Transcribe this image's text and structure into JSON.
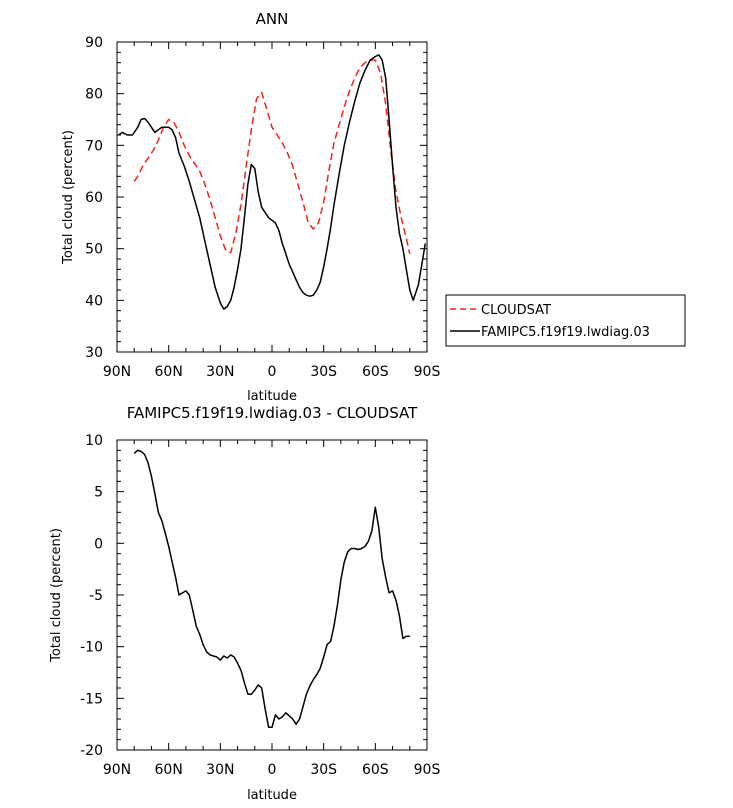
{
  "chart_data": [
    {
      "type": "line",
      "title": "ANN",
      "xlabel": "latitude",
      "ylabel": "Total cloud (percent)",
      "xlim": [
        90,
        -90
      ],
      "ylim": [
        30,
        90
      ],
      "x_ticks": [
        90,
        60,
        30,
        0,
        -30,
        -60,
        -90
      ],
      "x_tick_labels": [
        "90N",
        "60N",
        "30N",
        "0",
        "30S",
        "60S",
        "90S"
      ],
      "y_ticks": [
        30,
        40,
        50,
        60,
        70,
        80,
        90
      ],
      "y_tick_labels": [
        "30",
        "40",
        "50",
        "60",
        "70",
        "80",
        "90"
      ],
      "legend": {
        "position": "right"
      },
      "series": [
        {
          "name": "CLOUDSAT",
          "color": "#e8281e",
          "dash": "dashed",
          "x": [
            80,
            78,
            75,
            72,
            69,
            66,
            63,
            60,
            57,
            54,
            51,
            48,
            45,
            42,
            39,
            36,
            33,
            30,
            27,
            24,
            21,
            18,
            15,
            12,
            9,
            6,
            3,
            0,
            -3,
            -6,
            -9,
            -12,
            -15,
            -18,
            -21,
            -24,
            -27,
            -30,
            -33,
            -36,
            -39,
            -42,
            -45,
            -48,
            -51,
            -54,
            -57,
            -60,
            -63,
            -66,
            -69,
            -72,
            -75,
            -78,
            -80
          ],
          "y": [
            63,
            64,
            66,
            67.5,
            69,
            71,
            73.5,
            75,
            74.5,
            72.5,
            70,
            68,
            66.5,
            65,
            62.5,
            59.5,
            56,
            52.5,
            49.8,
            49.2,
            53,
            58.5,
            66,
            73,
            79,
            80.2,
            77,
            73.5,
            72,
            70.5,
            68.5,
            66,
            62.5,
            59,
            55,
            53.8,
            55,
            59,
            65,
            70.5,
            74,
            77.5,
            80.5,
            83,
            85,
            86,
            86.5,
            86.5,
            84,
            78,
            69,
            61,
            56,
            52,
            49
          ]
        },
        {
          "name": "FAMIPC5.f19f19.lwdiag.03",
          "color": "#000000",
          "dash": "solid",
          "x": [
            89,
            87,
            84,
            81,
            78,
            76,
            74,
            72,
            70,
            68,
            66,
            64,
            62,
            60,
            58,
            56,
            54,
            51,
            48,
            45,
            42,
            39,
            36,
            33,
            30,
            28,
            26,
            24,
            22,
            20,
            18,
            16,
            14,
            12,
            10,
            8,
            6,
            4,
            2,
            0,
            -2,
            -4,
            -6,
            -8,
            -10,
            -12,
            -14,
            -16,
            -18,
            -20,
            -22,
            -24,
            -26,
            -28,
            -30,
            -32,
            -34,
            -36,
            -39,
            -42,
            -45,
            -48,
            -51,
            -54,
            -57,
            -60,
            -62,
            -64,
            -66,
            -68,
            -70,
            -72,
            -74,
            -76,
            -78,
            -80,
            -82,
            -85,
            -89
          ],
          "y": [
            72,
            72.5,
            72,
            72,
            73.5,
            75,
            75.2,
            74.5,
            73.5,
            72.5,
            73,
            73.5,
            73.5,
            73.5,
            73,
            71.5,
            68.5,
            66,
            63,
            59.5,
            56,
            51.5,
            47,
            42.5,
            39.5,
            38.3,
            38.8,
            40,
            42.5,
            46,
            50,
            56,
            62.5,
            66.3,
            65.5,
            61,
            58,
            57,
            56,
            55.5,
            55,
            53.5,
            51,
            49,
            47,
            45.5,
            44,
            42.5,
            41.5,
            41,
            40.8,
            41,
            42,
            43.5,
            46.5,
            50,
            54,
            58.5,
            64.5,
            70,
            74.5,
            78.5,
            82,
            84.5,
            86.5,
            87.2,
            87.5,
            86.5,
            83,
            75,
            66,
            58,
            53,
            50,
            46,
            42,
            40,
            43,
            51
          ]
        }
      ]
    },
    {
      "type": "line",
      "title": "FAMIPC5.f19f19.lwdiag.03 - CLOUDSAT",
      "xlabel": "latitude",
      "ylabel": "Total cloud (percent)",
      "xlim": [
        90,
        -90
      ],
      "ylim": [
        -20,
        10
      ],
      "x_ticks": [
        90,
        60,
        30,
        0,
        -30,
        -60,
        -90
      ],
      "x_tick_labels": [
        "90N",
        "60N",
        "30N",
        "0",
        "30S",
        "60S",
        "90S"
      ],
      "y_ticks": [
        10,
        5,
        0,
        -5,
        -10,
        -15,
        -20
      ],
      "y_tick_labels": [
        "10",
        "5",
        "0",
        "-5",
        "-10",
        "-15",
        "-20"
      ],
      "series": [
        {
          "color": "#000000",
          "dash": "solid",
          "x": [
            80,
            78,
            76,
            74,
            72,
            70,
            68,
            66,
            64,
            62,
            60,
            58,
            56,
            54,
            52,
            50,
            48,
            46,
            44,
            42,
            40,
            38,
            36,
            34,
            32,
            30,
            28,
            26,
            24,
            22,
            20,
            18,
            16,
            14,
            12,
            10,
            8,
            6,
            4,
            2,
            0,
            -2,
            -4,
            -6,
            -8,
            -10,
            -12,
            -14,
            -16,
            -18,
            -20,
            -22,
            -24,
            -26,
            -28,
            -30,
            -32,
            -34,
            -36,
            -38,
            -40,
            -42,
            -44,
            -46,
            -48,
            -50,
            -52,
            -54,
            -56,
            -58,
            -60,
            -62,
            -64,
            -66,
            -68,
            -70,
            -72,
            -74,
            -76,
            -78,
            -80
          ],
          "y": [
            8.7,
            9,
            8.9,
            8.6,
            7.8,
            6.5,
            4.8,
            3,
            2.2,
            1,
            -0.3,
            -1.8,
            -3.3,
            -5,
            -4.8,
            -4.6,
            -5,
            -6.5,
            -8,
            -8.8,
            -9.8,
            -10.5,
            -10.8,
            -10.9,
            -11,
            -11.3,
            -10.9,
            -11.1,
            -10.8,
            -11,
            -11.6,
            -12.3,
            -13.5,
            -14.6,
            -14.6,
            -14.2,
            -13.7,
            -14,
            -16,
            -17.8,
            -17.8,
            -16.6,
            -17,
            -16.8,
            -16.4,
            -16.7,
            -17,
            -17.5,
            -17,
            -15.8,
            -14.6,
            -13.8,
            -13.2,
            -12.7,
            -12.1,
            -11,
            -9.8,
            -9.5,
            -8,
            -6,
            -3.5,
            -1.8,
            -0.8,
            -0.5,
            -0.5,
            -0.6,
            -0.5,
            -0.3,
            0.2,
            1.2,
            3.5,
            1.5,
            -1.5,
            -3.3,
            -4.8,
            -4.6,
            -5.5,
            -7,
            -9.2,
            -9,
            -9
          ]
        }
      ]
    }
  ]
}
